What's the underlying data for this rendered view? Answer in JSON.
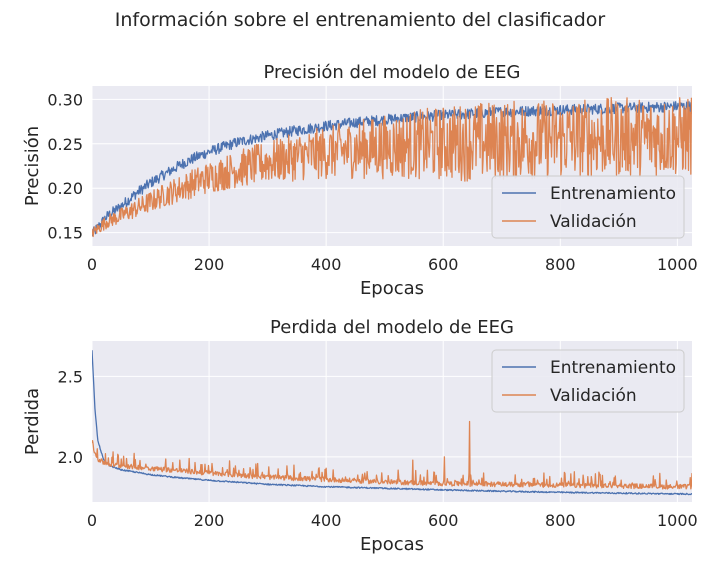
{
  "figure": {
    "suptitle": "Información sobre el entrenamiento del clasificador"
  },
  "colors": {
    "background": "#eaeaf2",
    "grid": "#ffffff",
    "train": "#4c72b0",
    "val": "#dd8452",
    "text": "#262626"
  },
  "chart_data": [
    {
      "type": "line",
      "title": "Precisión del modelo de EEG",
      "xlabel": "Epocas",
      "ylabel": "Precisión",
      "xlim": [
        0,
        1025
      ],
      "ylim": [
        0.135,
        0.315
      ],
      "xticks": [
        0,
        200,
        400,
        600,
        800,
        1000
      ],
      "yticks": [
        0.15,
        0.2,
        0.25,
        0.3
      ],
      "ytick_labels": [
        "0.15",
        "0.20",
        "0.25",
        "0.30"
      ],
      "grid": true,
      "legend_position": "lower-right",
      "series": [
        {
          "name": "Entrenamiento",
          "color": "#4c72b0",
          "x": [
            0,
            25,
            50,
            75,
            100,
            125,
            150,
            175,
            200,
            250,
            300,
            350,
            400,
            450,
            500,
            550,
            600,
            650,
            700,
            750,
            800,
            850,
            900,
            950,
            1000,
            1025
          ],
          "y": [
            0.148,
            0.168,
            0.18,
            0.194,
            0.206,
            0.216,
            0.226,
            0.234,
            0.241,
            0.252,
            0.259,
            0.265,
            0.27,
            0.274,
            0.277,
            0.28,
            0.282,
            0.284,
            0.286,
            0.287,
            0.288,
            0.289,
            0.29,
            0.291,
            0.292,
            0.292
          ]
        },
        {
          "name": "Validación",
          "color": "#dd8452",
          "x": [
            0,
            25,
            50,
            75,
            100,
            125,
            150,
            175,
            200,
            250,
            300,
            350,
            400,
            450,
            500,
            550,
            600,
            650,
            700,
            750,
            800,
            850,
            900,
            950,
            1000,
            1025
          ],
          "y": [
            0.15,
            0.163,
            0.17,
            0.178,
            0.186,
            0.194,
            0.201,
            0.208,
            0.214,
            0.224,
            0.232,
            0.238,
            0.243,
            0.247,
            0.25,
            0.253,
            0.255,
            0.257,
            0.258,
            0.259,
            0.26,
            0.261,
            0.262,
            0.262,
            0.263,
            0.263
          ]
        }
      ]
    },
    {
      "type": "line",
      "title": "Perdida del modelo de EEG",
      "xlabel": "Epocas",
      "ylabel": "Perdida",
      "xlim": [
        0,
        1025
      ],
      "ylim": [
        1.72,
        2.72
      ],
      "xticks": [
        0,
        200,
        400,
        600,
        800,
        1000
      ],
      "yticks": [
        2.0,
        2.5
      ],
      "ytick_labels": [
        "2.0",
        "2.5"
      ],
      "grid": true,
      "legend_position": "upper-right",
      "series": [
        {
          "name": "Entrenamiento",
          "color": "#4c72b0",
          "x": [
            0,
            5,
            10,
            20,
            30,
            50,
            75,
            100,
            150,
            200,
            300,
            400,
            500,
            600,
            700,
            800,
            900,
            1000,
            1025
          ],
          "y": [
            2.66,
            2.3,
            2.1,
            1.98,
            1.945,
            1.92,
            1.905,
            1.89,
            1.87,
            1.855,
            1.83,
            1.815,
            1.805,
            1.795,
            1.787,
            1.78,
            1.775,
            1.77,
            1.77
          ],
          "noise": 0.004
        },
        {
          "name": "Validación",
          "color": "#dd8452",
          "x": [
            0,
            5,
            10,
            20,
            30,
            50,
            100,
            150,
            200,
            300,
            400,
            500,
            600,
            700,
            800,
            900,
            1000,
            1025
          ],
          "y": [
            2.08,
            2.02,
            1.98,
            1.96,
            1.95,
            1.94,
            1.925,
            1.91,
            1.895,
            1.87,
            1.855,
            1.84,
            1.83,
            1.825,
            1.82,
            1.815,
            1.81,
            1.81
          ],
          "noise": 0.03,
          "spikes": [
            {
              "x": 645,
              "y": 2.22
            },
            {
              "x": 548,
              "y": 1.98
            },
            {
              "x": 602,
              "y": 2.0
            },
            {
              "x": 150,
              "y": 1.98
            }
          ]
        }
      ]
    }
  ]
}
